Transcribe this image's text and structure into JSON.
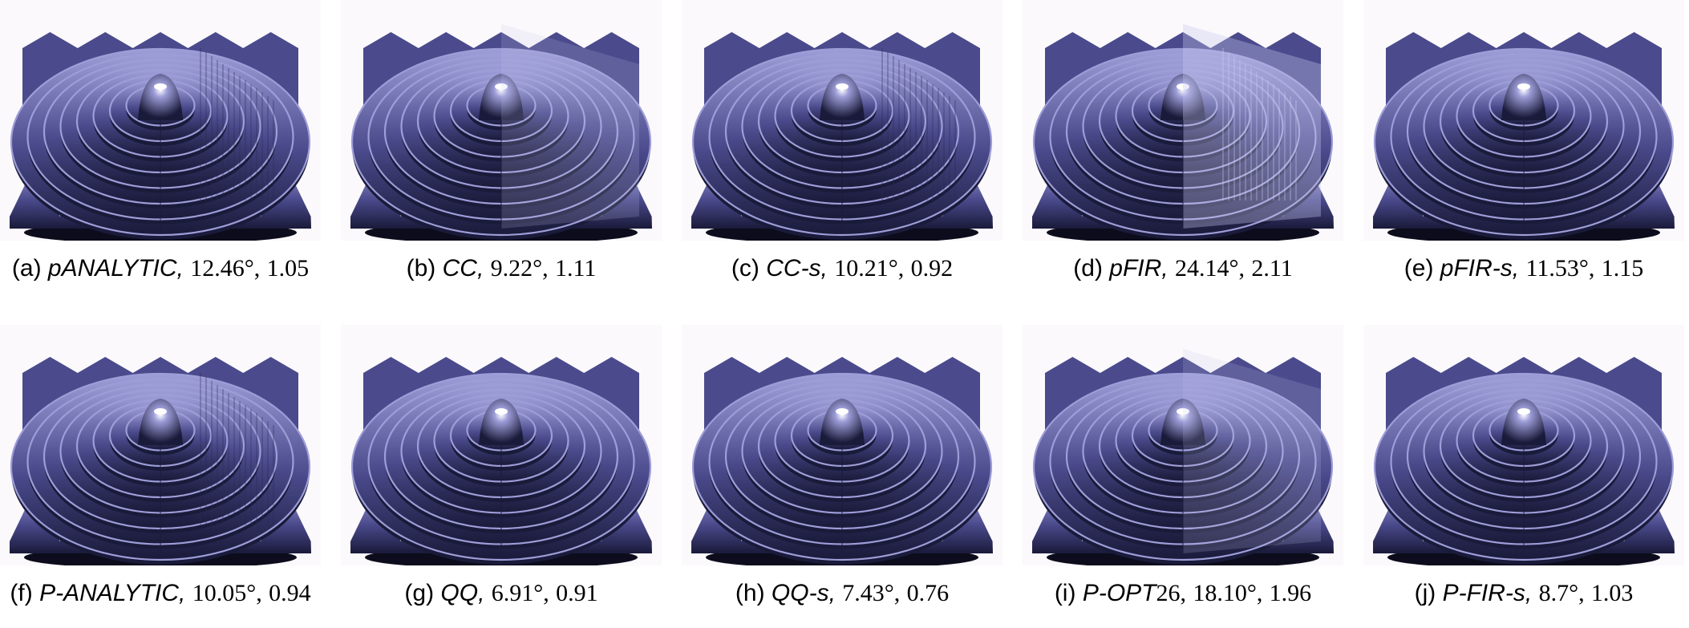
{
  "panels": [
    {
      "label": "(a)",
      "name": "pANALYTIC,",
      "angle": "12.46°,",
      "value": "1.05",
      "artifact": "ripple"
    },
    {
      "label": "(b)",
      "name": "CC,",
      "angle": "9.22°,",
      "value": "1.11",
      "artifact": "blend"
    },
    {
      "label": "(c)",
      "name": "CC-s,",
      "angle": "10.21°,",
      "value": "0.92",
      "artifact": "ripple"
    },
    {
      "label": "(d)",
      "name": "pFIR,",
      "angle": "24.14°,",
      "value": "2.11",
      "artifact": "strong"
    },
    {
      "label": "(e)",
      "name": "pFIR-s,",
      "angle": "11.53°,",
      "value": "1.15",
      "artifact": "light"
    },
    {
      "label": "(f)",
      "name": "P-ANALYTIC,",
      "angle": "10.05°,",
      "value": "0.94",
      "artifact": "ripple"
    },
    {
      "label": "(g)",
      "name": "QQ,",
      "angle": "6.91°,",
      "value": "0.91",
      "artifact": "light"
    },
    {
      "label": "(h)",
      "name": "QQ-s,",
      "angle": "7.43°,",
      "value": "0.76",
      "artifact": "light"
    },
    {
      "label": "(i)",
      "name": "P-OPT",
      "name_suffix": "26,",
      "angle": "18.10°,",
      "value": "1.96",
      "artifact": "blend"
    },
    {
      "label": "(j)",
      "name": "P-FIR-s,",
      "angle": "8.7°,",
      "value": "1.03",
      "artifact": "light"
    }
  ],
  "colors": {
    "surface_dark": "#1a1a3a",
    "surface_mid": "#4a4a8c",
    "surface_light": "#9d9dd8",
    "highlight": "#ffffff",
    "background": "#fbf9fb"
  }
}
